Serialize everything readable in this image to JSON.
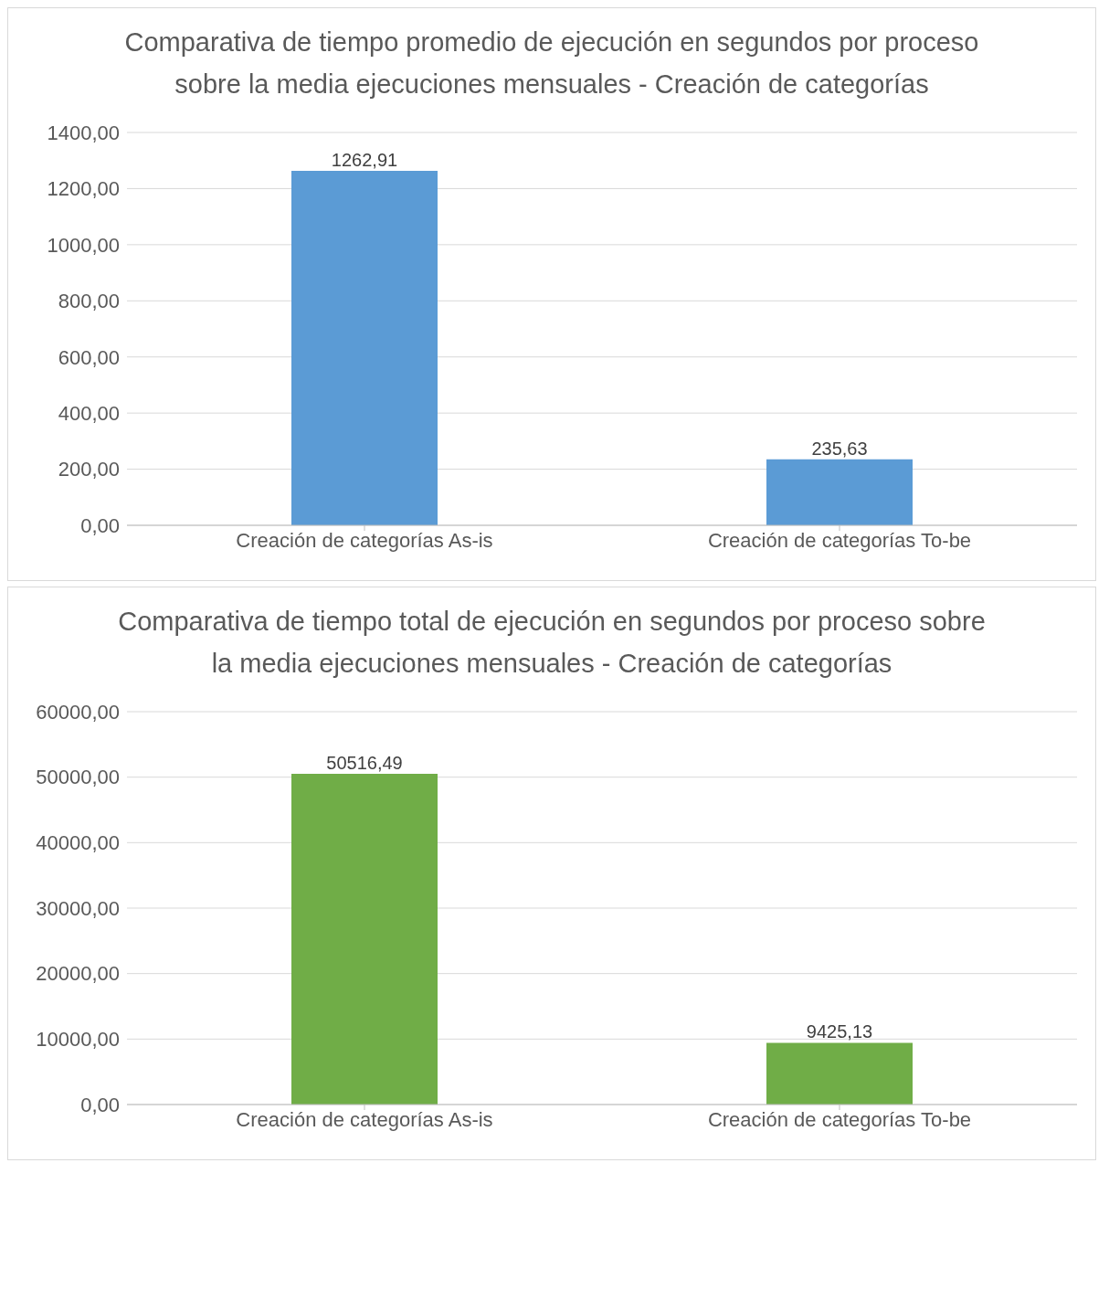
{
  "chart_data": [
    {
      "type": "bar",
      "title": "Comparativa de tiempo promedio de ejecución en segundos por proceso sobre la media ejecuciones mensuales - Creación de categorías",
      "categories": [
        "Creación de categorías As-is",
        "Creación de categorías To-be"
      ],
      "values": [
        1262.91,
        235.63
      ],
      "value_labels": [
        "1262,91",
        "235,63"
      ],
      "color": "#5b9bd5",
      "ylim": [
        0,
        1400
      ],
      "yticks": [
        {
          "value": 0,
          "label": "0,00"
        },
        {
          "value": 200,
          "label": "200,00"
        },
        {
          "value": 400,
          "label": "400,00"
        },
        {
          "value": 600,
          "label": "600,00"
        },
        {
          "value": 800,
          "label": "800,00"
        },
        {
          "value": 1000,
          "label": "1000,00"
        },
        {
          "value": 1200,
          "label": "1200,00"
        },
        {
          "value": 1400,
          "label": "1400,00"
        }
      ],
      "grid": "y"
    },
    {
      "type": "bar",
      "title": "Comparativa de tiempo total de ejecución en segundos por proceso sobre la media ejecuciones mensuales - Creación de categorías",
      "categories": [
        "Creación de categorías As-is",
        "Creación de categorías To-be"
      ],
      "values": [
        50516.49,
        9425.13
      ],
      "value_labels": [
        "50516,49",
        "9425,13"
      ],
      "color": "#70ad47",
      "ylim": [
        0,
        60000
      ],
      "yticks": [
        {
          "value": 0,
          "label": "0,00"
        },
        {
          "value": 10000,
          "label": "10000,00"
        },
        {
          "value": 20000,
          "label": "20000,00"
        },
        {
          "value": 30000,
          "label": "30000,00"
        },
        {
          "value": 40000,
          "label": "40000,00"
        },
        {
          "value": 50000,
          "label": "50000,00"
        },
        {
          "value": 60000,
          "label": "60000,00"
        }
      ],
      "grid": "y"
    }
  ]
}
